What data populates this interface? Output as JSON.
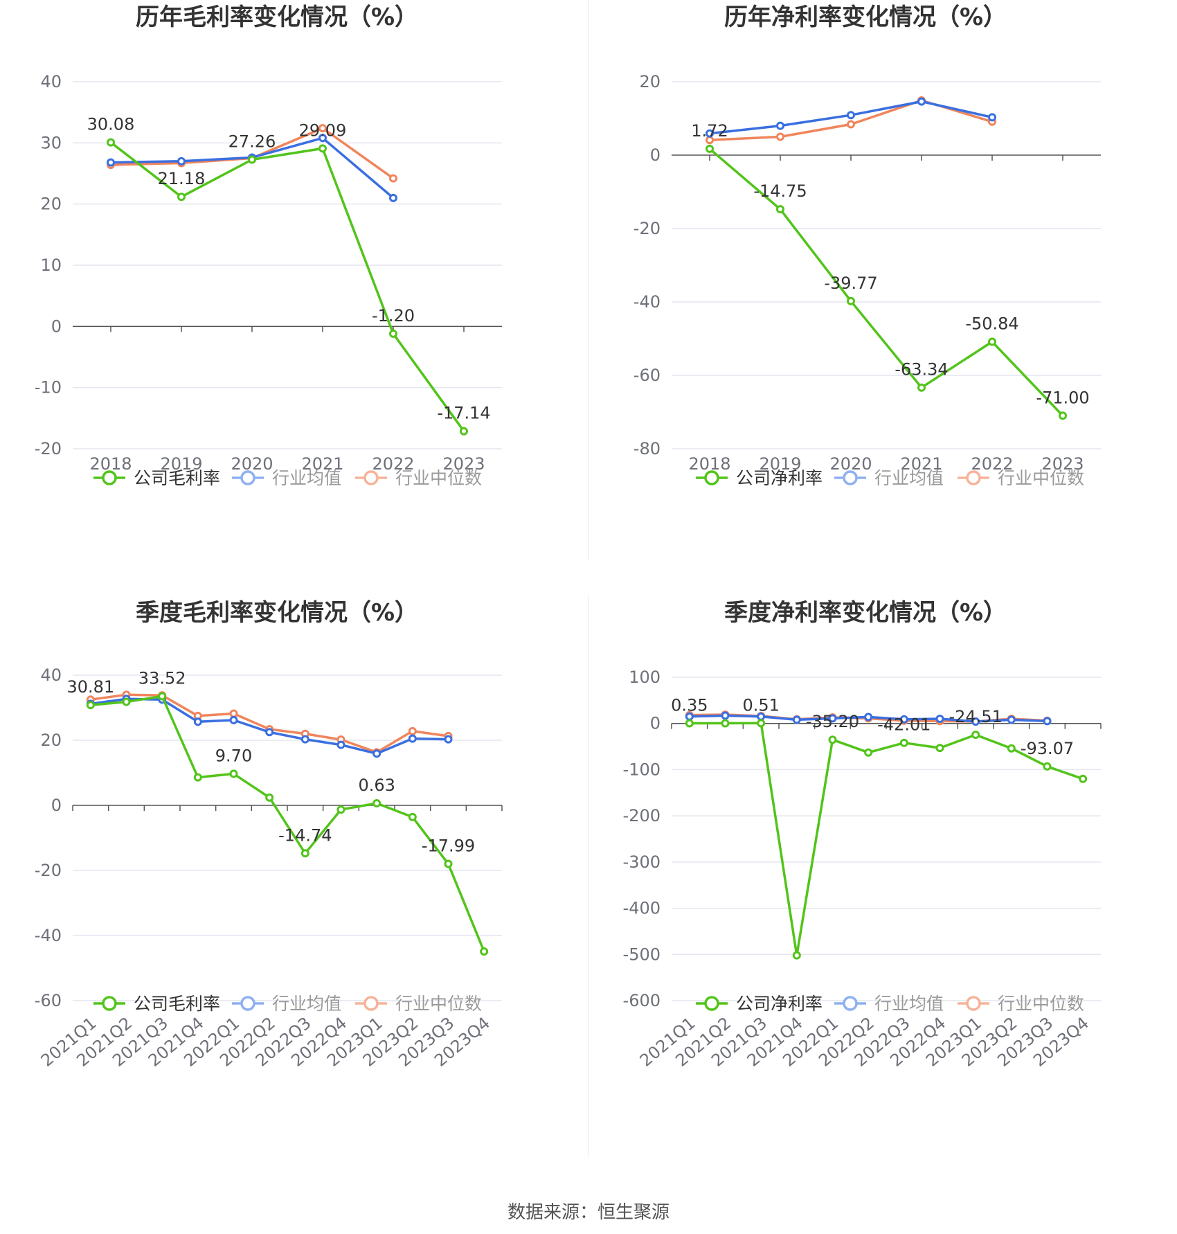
{
  "source_text": "数据来源：恒生聚源",
  "colors": {
    "company": "#52c41a",
    "avg": "#3a6fe0",
    "median": "#f0855c",
    "grid": "#e3e6ef",
    "axis": "#555555"
  },
  "chart_data": [
    {
      "type": "line",
      "title": "历年毛利率变化情况（%）",
      "categories": [
        "2018",
        "2019",
        "2020",
        "2021",
        "2022",
        "2023"
      ],
      "ylim": [
        -20,
        40
      ],
      "yticks": [
        40,
        30,
        20,
        10,
        0,
        -10,
        -20
      ],
      "rotate_x": false,
      "series": [
        {
          "name": "公司毛利率",
          "values": [
            30.08,
            21.18,
            27.26,
            29.09,
            -1.2,
            -17.14
          ],
          "labels": [
            "30.08",
            "21.18",
            "27.26",
            "29.09",
            "-1.20",
            "-17.14"
          ]
        },
        {
          "name": "行业均值",
          "values": [
            26.8,
            27.0,
            27.6,
            30.8,
            21.0,
            null
          ]
        },
        {
          "name": "行业中位数",
          "values": [
            26.4,
            26.7,
            27.5,
            32.4,
            24.2,
            null
          ]
        }
      ],
      "legend": [
        "公司毛利率",
        "行业均值",
        "行业中位数"
      ]
    },
    {
      "type": "line",
      "title": "历年净利率变化情况（%）",
      "categories": [
        "2018",
        "2019",
        "2020",
        "2021",
        "2022",
        "2023"
      ],
      "ylim": [
        -80,
        20
      ],
      "yticks": [
        20,
        0,
        -20,
        -40,
        -60,
        -80
      ],
      "rotate_x": false,
      "series": [
        {
          "name": "公司净利率",
          "values": [
            1.72,
            -14.75,
            -39.77,
            -63.34,
            -50.84,
            -71.0
          ],
          "labels": [
            "1.72",
            "-14.75",
            "-39.77",
            "-63.34",
            "-50.84",
            "-71.00"
          ]
        },
        {
          "name": "行业均值",
          "values": [
            5.9,
            8.0,
            10.9,
            14.6,
            10.3,
            null
          ]
        },
        {
          "name": "行业中位数",
          "values": [
            4.1,
            5.0,
            8.4,
            14.9,
            9.1,
            null
          ]
        }
      ],
      "legend": [
        "公司净利率",
        "行业均值",
        "行业中位数"
      ]
    },
    {
      "type": "line",
      "title": "季度毛利率变化情况（%）",
      "categories": [
        "2021Q1",
        "2021Q2",
        "2021Q3",
        "2021Q4",
        "2022Q1",
        "2022Q2",
        "2022Q3",
        "2022Q4",
        "2023Q1",
        "2023Q2",
        "2023Q3",
        "2023Q4"
      ],
      "ylim": [
        -60,
        40
      ],
      "yticks": [
        40,
        20,
        0,
        -20,
        -40,
        -60
      ],
      "rotate_x": true,
      "series": [
        {
          "name": "公司毛利率",
          "values": [
            30.81,
            31.8,
            33.52,
            8.6,
            9.7,
            2.4,
            -14.74,
            -1.3,
            0.63,
            -3.6,
            -17.99,
            -44.9
          ],
          "labels": [
            "30.81",
            "",
            "33.52",
            "",
            "9.70",
            "",
            "-14.74",
            "",
            "0.63",
            "",
            "-17.99",
            ""
          ]
        },
        {
          "name": "行业均值",
          "values": [
            31.2,
            32.7,
            32.5,
            25.7,
            26.2,
            22.5,
            20.3,
            18.6,
            15.9,
            20.5,
            20.3,
            null
          ]
        },
        {
          "name": "行业中位数",
          "values": [
            32.5,
            34.0,
            33.8,
            27.5,
            28.2,
            23.4,
            22.0,
            20.2,
            16.3,
            22.8,
            21.3,
            null
          ]
        }
      ],
      "legend": [
        "公司毛利率",
        "行业均值",
        "行业中位数"
      ]
    },
    {
      "type": "line",
      "title": "季度净利率变化情况（%）",
      "categories": [
        "2021Q1",
        "2021Q2",
        "2021Q3",
        "2021Q4",
        "2022Q1",
        "2022Q2",
        "2022Q3",
        "2022Q4",
        "2023Q1",
        "2023Q2",
        "2023Q3",
        "2023Q4"
      ],
      "ylim": [
        -600,
        100
      ],
      "yticks": [
        100,
        0,
        -100,
        -200,
        -300,
        -400,
        -500,
        -600
      ],
      "rotate_x": true,
      "series": [
        {
          "name": "公司净利率",
          "values": [
            0.35,
            0.4,
            0.51,
            -502,
            -35.2,
            -63,
            -42.01,
            -53,
            -24.51,
            -54,
            -93.07,
            -120
          ],
          "labels": [
            "0.35",
            "",
            "0.51",
            "",
            "-35.20",
            "",
            "-42.01",
            "",
            "-24.51",
            "",
            "-93.07",
            ""
          ]
        },
        {
          "name": "行业均值",
          "values": [
            15,
            17,
            15,
            8,
            11,
            14,
            9,
            10,
            4,
            8,
            5,
            null
          ]
        },
        {
          "name": "行业中位数",
          "values": [
            18,
            19,
            16,
            9,
            13,
            11,
            6,
            5,
            4,
            10,
            6,
            null
          ]
        }
      ],
      "legend": [
        "公司净利率",
        "行业均值",
        "行业中位数"
      ]
    }
  ]
}
